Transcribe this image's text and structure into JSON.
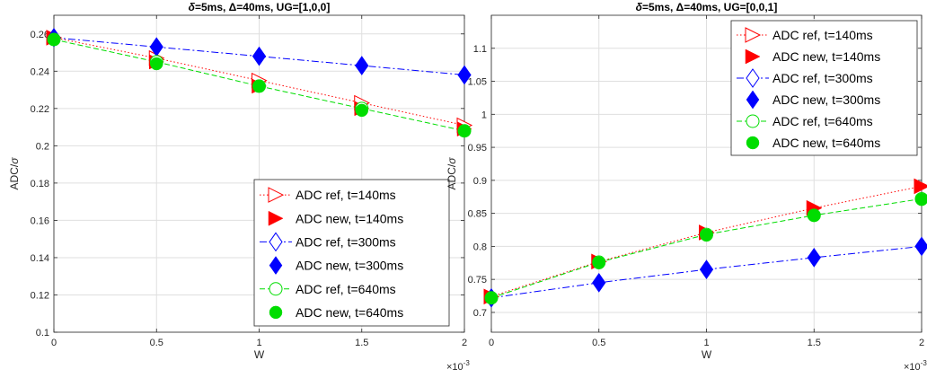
{
  "chart_data": [
    {
      "type": "line",
      "title_parts": [
        "δ",
        "=5ms, ",
        "Δ",
        "=40ms, UG=[1,0,0]"
      ],
      "xlabel": "W",
      "ylabel_parts": [
        "ADC/",
        "σ"
      ],
      "x_multiplier_base": "×10",
      "x_multiplier_exp": "-3",
      "xlim": [
        0,
        2
      ],
      "ylim": [
        0.1,
        0.27
      ],
      "xticks": [
        0,
        0.5,
        1,
        1.5,
        2
      ],
      "xtick_labels": [
        "0",
        "0.5",
        "1",
        "1.5",
        "2"
      ],
      "yticks": [
        0.1,
        0.12,
        0.14,
        0.16,
        0.18,
        0.2,
        0.22,
        0.24,
        0.26
      ],
      "ytick_labels": [
        "0.1",
        "0.12",
        "0.14",
        "0.16",
        "0.18",
        "0.2",
        "0.22",
        "0.24",
        "0.26"
      ],
      "legend_position": "lower-right",
      "x": [
        0,
        0.5,
        1,
        1.5,
        2
      ],
      "series": [
        {
          "name": "ADC ref, t=140ms",
          "values": [
            0.258,
            0.247,
            0.235,
            0.223,
            0.211
          ],
          "color": "#ff0000",
          "marker": "triangle-right-open",
          "line": "dotted"
        },
        {
          "name": "ADC new, t=140ms",
          "values": [
            0.258,
            0.245,
            0.232,
            0.22,
            0.209
          ],
          "color": "#ff0000",
          "marker": "triangle-right-filled",
          "line": "none"
        },
        {
          "name": "ADC ref, t=300ms",
          "values": [
            0.258,
            0.253,
            0.248,
            0.243,
            0.238
          ],
          "color": "#0000ff",
          "marker": "diamond-open",
          "line": "dashdot"
        },
        {
          "name": "ADC new, t=300ms",
          "values": [
            0.258,
            0.253,
            0.248,
            0.243,
            0.238
          ],
          "color": "#0000ff",
          "marker": "diamond-filled",
          "line": "none"
        },
        {
          "name": "ADC ref, t=640ms",
          "values": [
            0.257,
            0.245,
            0.232,
            0.22,
            0.208
          ],
          "color": "#00dd00",
          "marker": "circle-open",
          "line": "dashed"
        },
        {
          "name": "ADC new, t=640ms",
          "values": [
            0.257,
            0.244,
            0.232,
            0.219,
            0.208
          ],
          "color": "#00dd00",
          "marker": "circle-filled",
          "line": "none"
        }
      ]
    },
    {
      "type": "line",
      "title_parts": [
        "δ",
        "=5ms, ",
        "Δ",
        "=40ms, UG=[0,0,1]"
      ],
      "xlabel": "W",
      "ylabel_parts": [
        "ADC/",
        "σ"
      ],
      "x_multiplier_base": "×10",
      "x_multiplier_exp": "-3",
      "xlim": [
        0,
        2
      ],
      "ylim": [
        0.67,
        1.15
      ],
      "xticks": [
        0,
        0.5,
        1,
        1.5,
        2
      ],
      "xtick_labels": [
        "0",
        "0.5",
        "1",
        "1.5",
        "2"
      ],
      "yticks": [
        0.7,
        0.75,
        0.8,
        0.85,
        0.9,
        0.95,
        1.0,
        1.05,
        1.1
      ],
      "ytick_labels": [
        "0.7",
        "0.75",
        "0.8",
        "0.85",
        "0.9",
        "0.95",
        "1",
        "1.05",
        "1.1"
      ],
      "legend_position": "upper-right",
      "x": [
        0,
        0.5,
        1,
        1.5,
        2
      ],
      "series": [
        {
          "name": "ADC ref, t=140ms",
          "values": [
            0.724,
            0.777,
            0.821,
            0.858,
            0.891
          ],
          "color": "#ff0000",
          "marker": "triangle-right-open",
          "line": "dotted"
        },
        {
          "name": "ADC new, t=140ms",
          "values": [
            0.724,
            0.777,
            0.821,
            0.858,
            0.891
          ],
          "color": "#ff0000",
          "marker": "triangle-right-filled",
          "line": "none"
        },
        {
          "name": "ADC ref, t=300ms",
          "values": [
            0.722,
            0.745,
            0.765,
            0.783,
            0.8
          ],
          "color": "#0000ff",
          "marker": "diamond-open",
          "line": "dashdot"
        },
        {
          "name": "ADC new, t=300ms",
          "values": [
            0.722,
            0.745,
            0.765,
            0.783,
            0.8
          ],
          "color": "#0000ff",
          "marker": "diamond-filled",
          "line": "none"
        },
        {
          "name": "ADC ref, t=640ms",
          "values": [
            0.722,
            0.776,
            0.818,
            0.847,
            0.872
          ],
          "color": "#00dd00",
          "marker": "circle-open",
          "line": "dashed"
        },
        {
          "name": "ADC new, t=640ms",
          "values": [
            0.722,
            0.775,
            0.817,
            0.847,
            0.871
          ],
          "color": "#00dd00",
          "marker": "circle-filled",
          "line": "none"
        }
      ]
    }
  ]
}
